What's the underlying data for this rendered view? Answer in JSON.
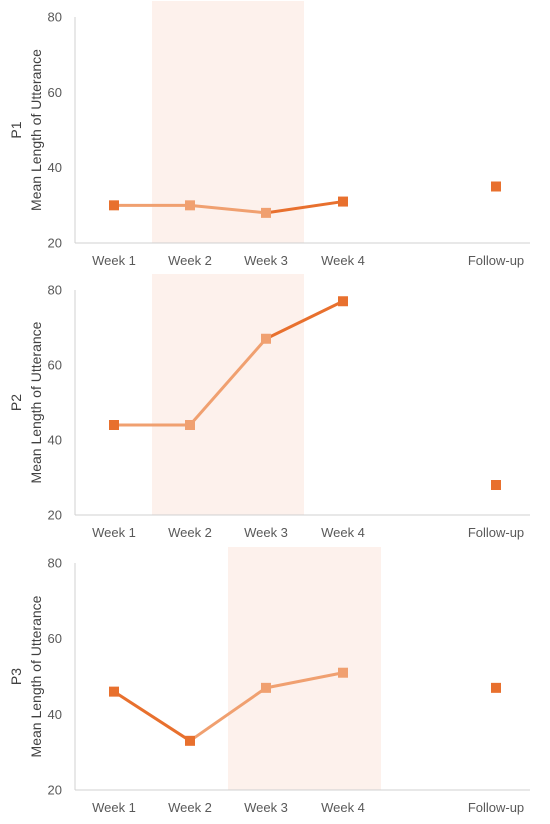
{
  "chart_data": [
    {
      "type": "line",
      "participant": "P1",
      "ylabel": "Mean Length of Utterance",
      "categories": [
        "Week 1",
        "Week 2",
        "Week 3",
        "Week 4",
        "",
        "Follow-up"
      ],
      "ylim": [
        20,
        80
      ],
      "yticks": [
        20,
        40,
        60,
        80
      ],
      "shaded_weeks": [
        "Week 2",
        "Week 3"
      ],
      "values": [
        30,
        30,
        28,
        31,
        null,
        35
      ]
    },
    {
      "type": "line",
      "participant": "P2",
      "ylabel": "Mean Length of Utterance",
      "categories": [
        "Week 1",
        "Week 2",
        "Week 3",
        "Week 4",
        "",
        "Follow-up"
      ],
      "ylim": [
        20,
        80
      ],
      "yticks": [
        20,
        40,
        60,
        80
      ],
      "shaded_weeks": [
        "Week 2",
        "Week 3"
      ],
      "values": [
        44,
        44,
        67,
        77,
        null,
        28
      ]
    },
    {
      "type": "line",
      "participant": "P3",
      "ylabel": "Mean Length of Utterance",
      "categories": [
        "Week 1",
        "Week 2",
        "Week 3",
        "Week 4",
        "",
        "Follow-up"
      ],
      "ylim": [
        20,
        80
      ],
      "yticks": [
        20,
        40,
        60,
        80
      ],
      "shaded_weeks": [
        "Week 3",
        "Week 4"
      ],
      "values": [
        46,
        33,
        47,
        51,
        null,
        47
      ]
    }
  ],
  "colors": {
    "baseline": "#E8702E",
    "intervention": "#F0A070",
    "shade": "#FDF1EC",
    "axis": "#D0D0D0"
  }
}
